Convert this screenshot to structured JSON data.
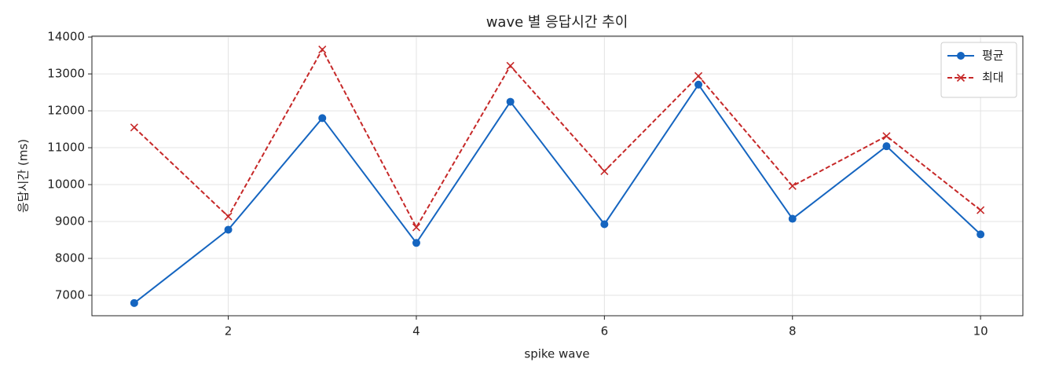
{
  "chart_data": {
    "type": "line",
    "title": "wave 별 응답시간 추이",
    "x_label": "spike wave",
    "y_label": "응답시간 (ms)",
    "x": [
      1,
      2,
      3,
      4,
      5,
      6,
      7,
      8,
      9,
      10
    ],
    "series": [
      {
        "name": "평균",
        "color": "#1565c0",
        "marker": "circle",
        "line_style": "solid",
        "values": [
          6790,
          8778,
          11801,
          8419,
          12245,
          8926,
          12710,
          9074,
          11040,
          8651
        ]
      },
      {
        "name": "최대",
        "color": "#c62828",
        "marker": "x",
        "line_style": "dashed",
        "values": [
          11548,
          9137,
          13662,
          8841,
          13218,
          10364,
          12943,
          9962,
          11315,
          9307
        ]
      }
    ],
    "xlim": [
      0.55,
      10.45
    ],
    "ylim": [
      6446,
      14024
    ],
    "xticks": [
      2,
      4,
      6,
      8,
      10
    ],
    "yticks": [
      7000,
      8000,
      9000,
      10000,
      11000,
      12000,
      13000,
      14000
    ],
    "grid": true,
    "legend": "upper right"
  }
}
